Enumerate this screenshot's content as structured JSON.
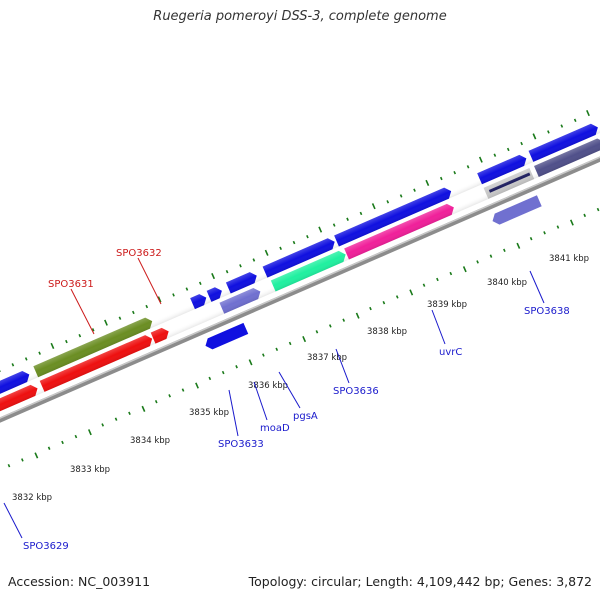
{
  "title": "Ruegeria pomeroyi DSS-3, complete genome",
  "footer": {
    "accession": "Accession: NC_003911",
    "summary": "Topology: circular; Length: 4,109,442 bp; Genes: 3,872"
  },
  "colors": {
    "backbone": "#8c8c8c",
    "tick": "#1a7a1a",
    "label_blue": "#1a1acc",
    "label_red": "#cc1a1a",
    "gene_blue": "#1010e0",
    "gene_red": "#ee1010",
    "gene_olive": "#6b8e23",
    "gene_teal": "#20f0a0",
    "gene_pink": "#f0209a",
    "gene_purple": "#7070d0",
    "gene_darkpurple": "#50508a",
    "gene_gray": "#888888"
  },
  "scale_labels": [
    "3832 kbp",
    "3833 kbp",
    "3834 kbp",
    "3835 kbp",
    "3836 kbp",
    "3837 kbp",
    "3838 kbp",
    "3839 kbp",
    "3840 kbp",
    "3841 kbp"
  ],
  "gene_labels": {
    "spo3629": "SPO3629",
    "spo3631": "SPO3631",
    "spo3632": "SPO3632",
    "spo3633": "SPO3633",
    "moad": "moaD",
    "pgsa": "pgsA",
    "spo3636": "SPO3636",
    "uvrc": "uvrC",
    "spo3638": "SPO3638"
  }
}
